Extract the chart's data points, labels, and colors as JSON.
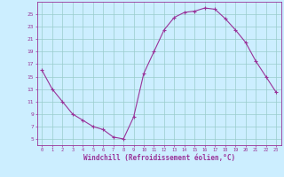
{
  "x": [
    0,
    1,
    2,
    3,
    4,
    5,
    6,
    7,
    8,
    9,
    10,
    11,
    12,
    13,
    14,
    15,
    16,
    17,
    18,
    19,
    20,
    21,
    22,
    23
  ],
  "y": [
    16,
    13,
    11,
    9,
    8,
    7,
    6.5,
    5.3,
    5.0,
    8.5,
    15.5,
    19.0,
    22.5,
    24.5,
    25.3,
    25.5,
    26.0,
    25.8,
    24.3,
    22.5,
    20.5,
    17.5,
    15.0,
    12.5
  ],
  "line_color": "#993399",
  "marker": "+",
  "marker_color": "#993399",
  "bg_color": "#cceeff",
  "grid_color": "#99cccc",
  "xlabel": "Windchill (Refroidissement éolien,°C)",
  "xlabel_color": "#993399",
  "ylabel_ticks": [
    5,
    7,
    9,
    11,
    13,
    15,
    17,
    19,
    21,
    23,
    25
  ],
  "ylim": [
    4,
    27
  ],
  "xlim": [
    -0.5,
    23.5
  ],
  "xtick_labels": [
    "0",
    "1",
    "2",
    "3",
    "4",
    "5",
    "6",
    "7",
    "8",
    "9",
    "10",
    "11",
    "12",
    "13",
    "14",
    "15",
    "16",
    "17",
    "18",
    "19",
    "20",
    "21",
    "22",
    "23"
  ]
}
